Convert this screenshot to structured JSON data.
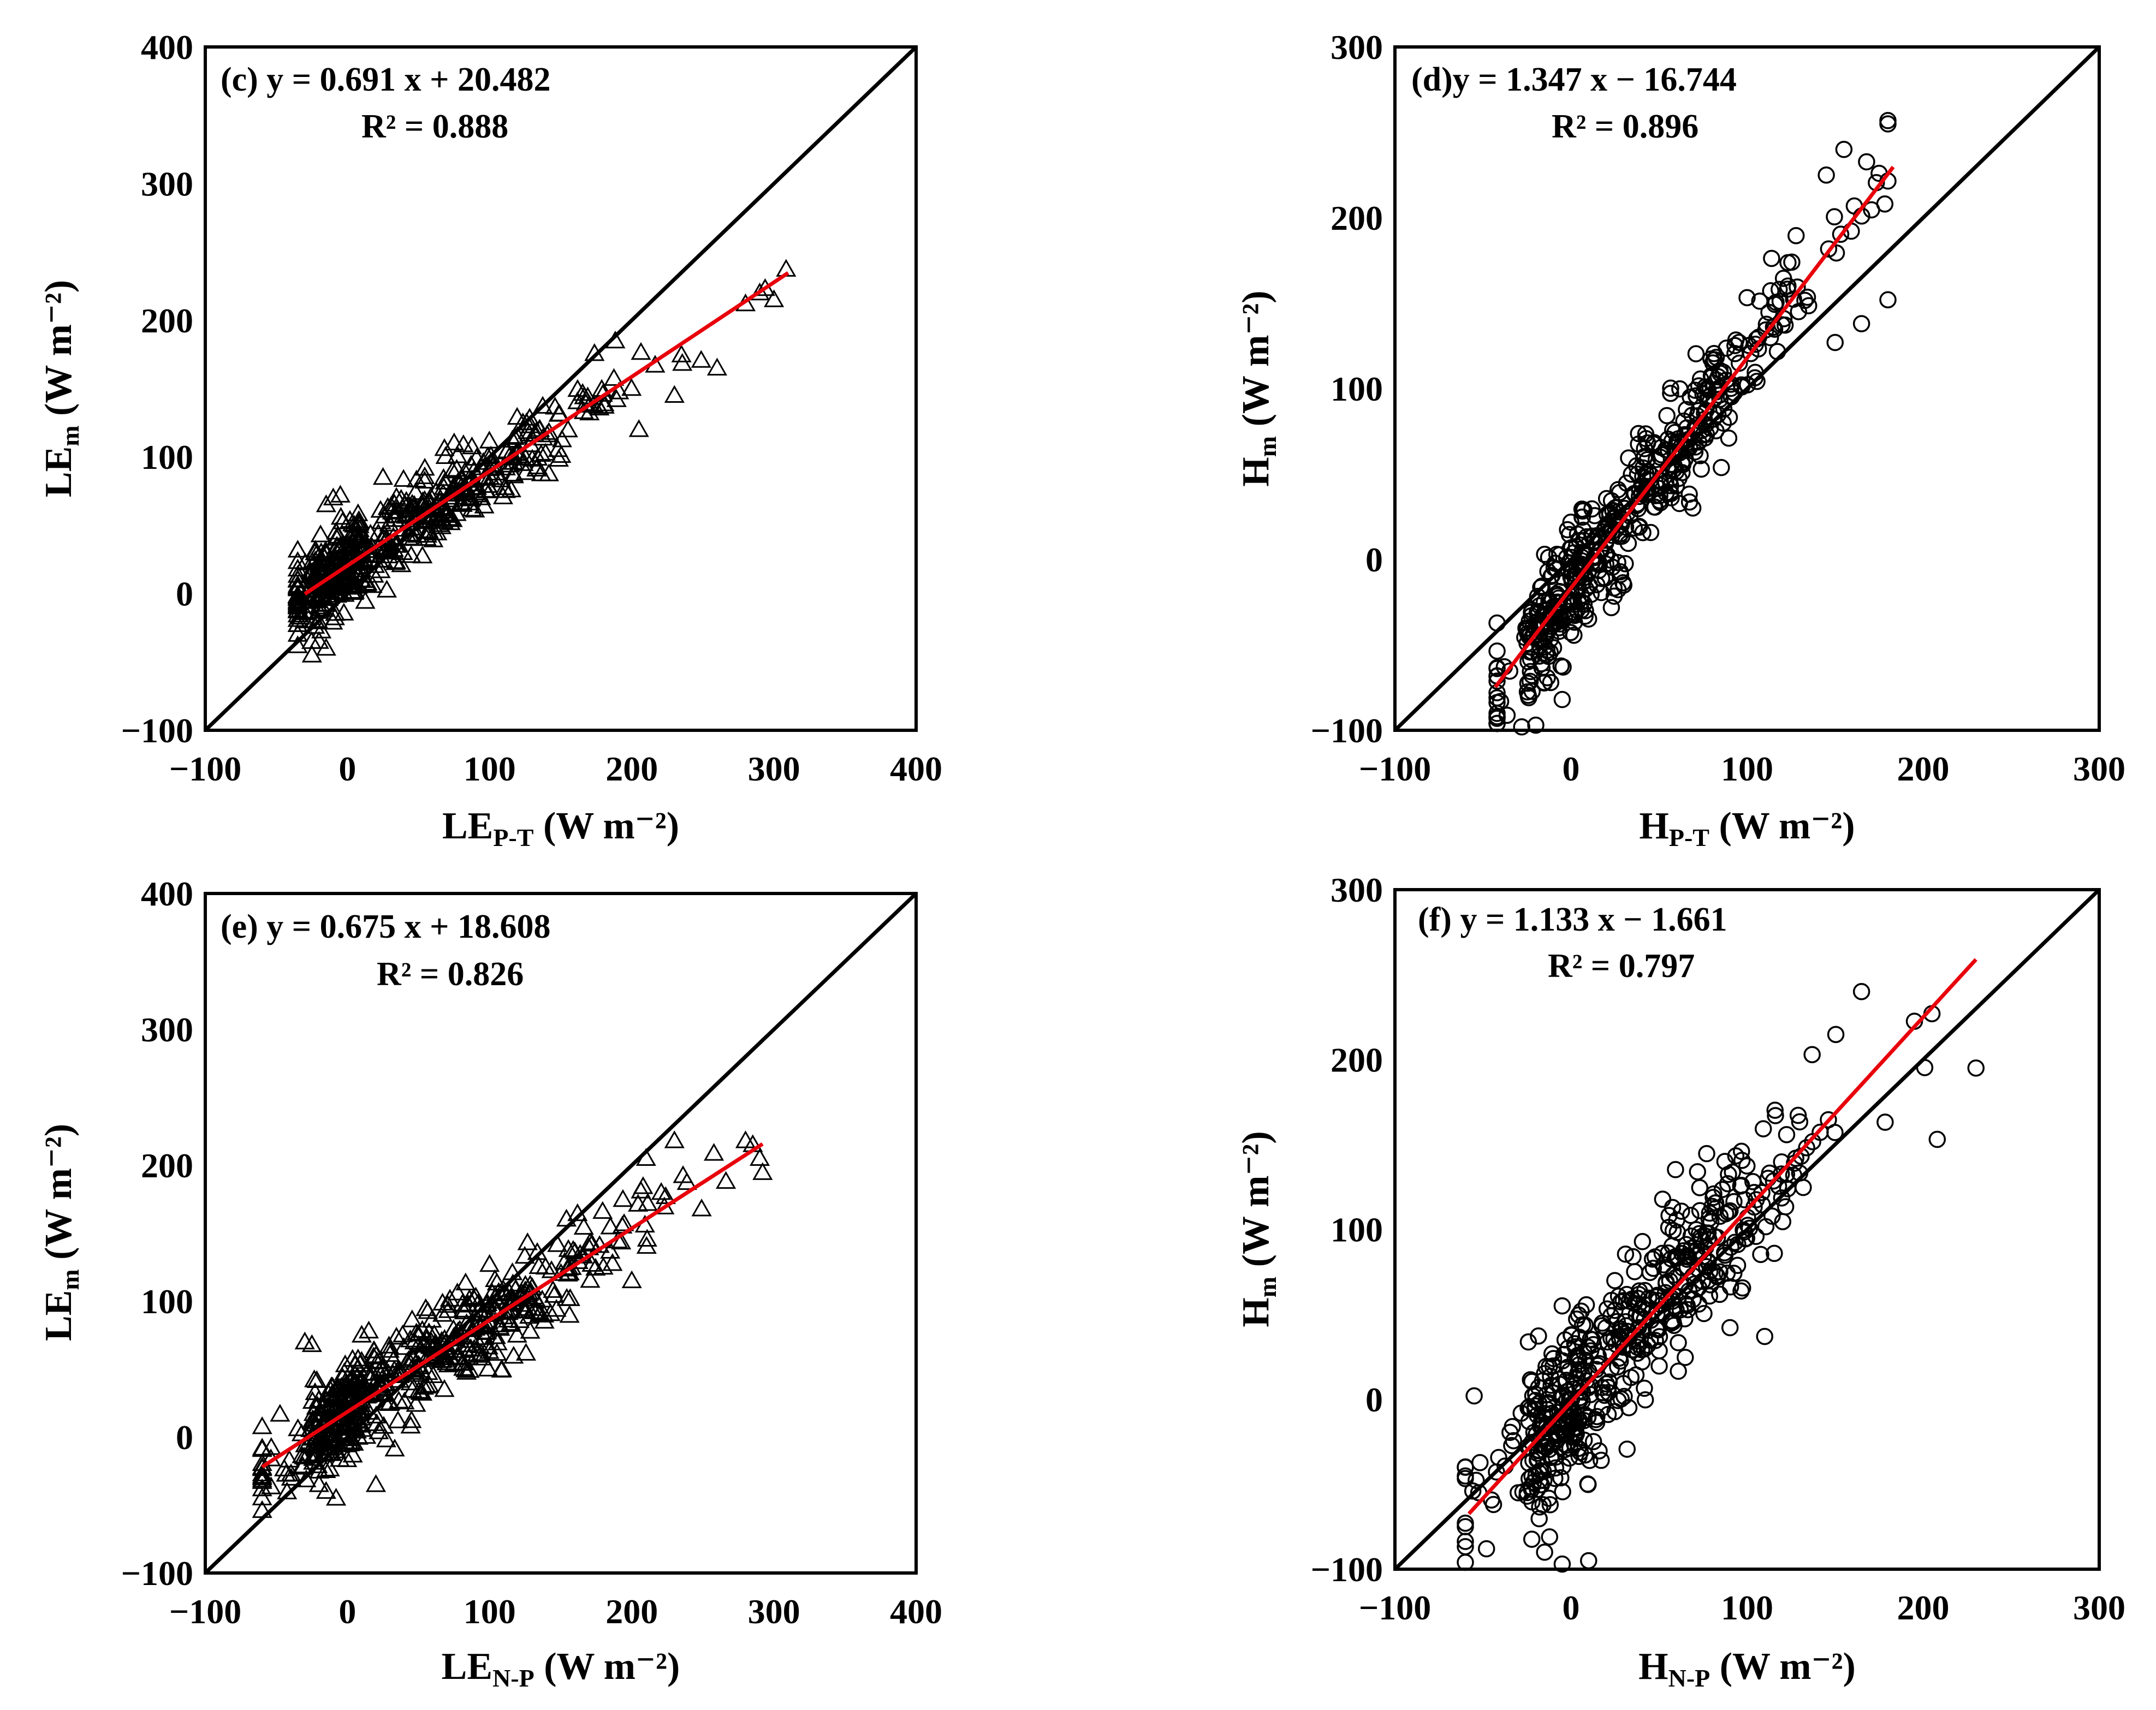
{
  "chart_data": [
    {
      "type": "scatter",
      "panel": "c",
      "marker": "triangle",
      "annotation": {
        "equation": "(c) y = 0.691 x + 20.482",
        "r2": "R² = 0.888"
      },
      "xlabel": {
        "main": "LE",
        "sub": "P-T",
        "unit": " (W m⁻²)"
      },
      "ylabel": {
        "main": "LE",
        "sub": "m",
        "unit": " (W m⁻²)"
      },
      "xlim": [
        -100,
        400
      ],
      "ylim": [
        -100,
        400
      ],
      "xticks": [
        -100,
        0,
        100,
        200,
        300,
        400
      ],
      "yticks": [
        -100,
        0,
        100,
        200,
        300,
        400
      ],
      "xtick_labels": [
        "−100",
        "0",
        "100",
        "200",
        "300",
        "400"
      ],
      "ytick_labels": [
        "−100",
        "0",
        "100",
        "200",
        "300",
        "400"
      ],
      "one_to_one": true,
      "fit": {
        "slope": 0.691,
        "intercept": 20.482,
        "x_range": [
          -30,
          310
        ],
        "color": "#e8000b"
      },
      "scatter": {
        "n": 540,
        "seed": 11,
        "x_center": 60,
        "x_spread": 70,
        "x_min": -35,
        "x_max": 310,
        "y_noise": 15,
        "extra_points": [
          [
            -25,
            -45
          ],
          [
            -15,
            -40
          ],
          [
            -30,
            -20
          ],
          [
            -20,
            -35
          ],
          [
            -10,
            70
          ],
          [
            -5,
            72
          ],
          [
            -15,
            65
          ],
          [
            -8,
            45
          ],
          [
            25,
            85
          ],
          [
            300,
            215
          ],
          [
            290,
            220
          ],
          [
            260,
            165
          ],
          [
            230,
            145
          ],
          [
            205,
            120
          ],
          [
            280,
            212
          ]
        ]
      }
    },
    {
      "type": "scatter",
      "panel": "d",
      "marker": "circle",
      "annotation": {
        "equation": "(d)y = 1.347 x − 16.744",
        "r2": "R² = 0.896"
      },
      "xlabel": {
        "main": "H",
        "sub": "P-T",
        "unit": " (W m⁻²)"
      },
      "ylabel": {
        "main": "H",
        "sub": "m",
        "unit": " (W m⁻²)"
      },
      "xlim": [
        -100,
        300
      ],
      "ylim": [
        -100,
        300
      ],
      "xticks": [
        -100,
        0,
        100,
        200,
        300
      ],
      "yticks": [
        -100,
        0,
        100,
        200,
        300
      ],
      "xtick_labels": [
        "−100",
        "0",
        "100",
        "200",
        "300"
      ],
      "ytick_labels": [
        "−100",
        "0",
        "100",
        "200",
        "300"
      ],
      "one_to_one": true,
      "fit": {
        "slope": 1.347,
        "intercept": -16.744,
        "x_range": [
          -43,
          183
        ],
        "color": "#e8000b"
      },
      "scatter": {
        "n": 520,
        "seed": 23,
        "x_center": 45,
        "x_spread": 48,
        "x_min": -42,
        "x_max": 180,
        "y_noise": 16,
        "extra_points": [
          [
            -42,
            -93
          ],
          [
            -28,
            -98
          ],
          [
            -20,
            -97
          ],
          [
            -5,
            -82
          ],
          [
            155,
            240
          ],
          [
            145,
            225
          ],
          [
            175,
            226
          ],
          [
            180,
            152
          ],
          [
            165,
            138
          ],
          [
            150,
            127
          ],
          [
            -15,
            3
          ],
          [
            -8,
            3
          ],
          [
            30,
            -15
          ]
        ]
      }
    },
    {
      "type": "scatter",
      "panel": "e",
      "marker": "triangle",
      "annotation": {
        "equation": "(e)  y = 0.675 x + 18.608",
        "r2": "R² = 0.826"
      },
      "xlabel": {
        "main": "LE",
        "sub": "N-P",
        "unit": " (W m⁻²)"
      },
      "ylabel": {
        "main": "LE",
        "sub": "m",
        "unit": " (W m⁻²)"
      },
      "xlim": [
        -100,
        400
      ],
      "ylim": [
        -100,
        400
      ],
      "xticks": [
        -100,
        0,
        100,
        200,
        300,
        400
      ],
      "yticks": [
        -100,
        0,
        100,
        200,
        300,
        400
      ],
      "xtick_labels": [
        "−100",
        "0",
        "100",
        "200",
        "300",
        "400"
      ],
      "ytick_labels": [
        "−100",
        "0",
        "100",
        "200",
        "300",
        "400"
      ],
      "one_to_one": true,
      "fit": {
        "slope": 0.675,
        "intercept": 18.608,
        "x_range": [
          -60,
          292
        ],
        "color": "#e8000b"
      },
      "scatter": {
        "n": 560,
        "seed": 37,
        "x_center": 65,
        "x_spread": 70,
        "x_min": -60,
        "x_max": 292,
        "y_noise": 17,
        "extra_points": [
          [
            -30,
            70
          ],
          [
            -25,
            68
          ],
          [
            15,
            78
          ],
          [
            10,
            75
          ],
          [
            -15,
            -40
          ],
          [
            -8,
            -45
          ],
          [
            -20,
            -35
          ],
          [
            20,
            -35
          ],
          [
            280,
            218
          ],
          [
            290,
            205
          ],
          [
            230,
            218
          ],
          [
            210,
            205
          ],
          [
            200,
            115
          ],
          [
            180,
            125
          ]
        ]
      }
    },
    {
      "type": "scatter",
      "panel": "f",
      "marker": "circle",
      "annotation": {
        "equation": "(f) y = 1.133 x − 1.661",
        "r2": "R² = 0.797"
      },
      "xlabel": {
        "main": "H",
        "sub": "N-P",
        "unit": " (W m⁻²)"
      },
      "ylabel": {
        "main": "H",
        "sub": "m",
        "unit": " (W m⁻²)"
      },
      "xlim": [
        -100,
        300
      ],
      "ylim": [
        -100,
        300
      ],
      "xticks": [
        -100,
        0,
        100,
        200,
        300
      ],
      "yticks": [
        -100,
        0,
        100,
        200,
        300
      ],
      "xtick_labels": [
        "−100",
        "0",
        "100",
        "200",
        "300"
      ],
      "ytick_labels": [
        "−100",
        "0",
        "100",
        "200",
        "300"
      ],
      "one_to_one": true,
      "fit": {
        "slope": 1.133,
        "intercept": -1.661,
        "x_range": [
          -58,
          230
        ],
        "color": "#e8000b"
      },
      "scatter": {
        "n": 530,
        "seed": 53,
        "x_center": 50,
        "x_spread": 52,
        "x_min": -60,
        "x_max": 230,
        "y_noise": 24,
        "extra_points": [
          [
            -60,
            -40
          ],
          [
            -55,
            2
          ],
          [
            -48,
            -88
          ],
          [
            -30,
            -55
          ],
          [
            -5,
            -97
          ],
          [
            10,
            -95
          ],
          [
            -15,
            -90
          ],
          [
            -5,
            55
          ],
          [
            230,
            195
          ],
          [
            205,
            227
          ],
          [
            208,
            153
          ],
          [
            165,
            240
          ],
          [
            110,
            37
          ],
          [
            -2,
            -10
          ]
        ]
      }
    }
  ]
}
